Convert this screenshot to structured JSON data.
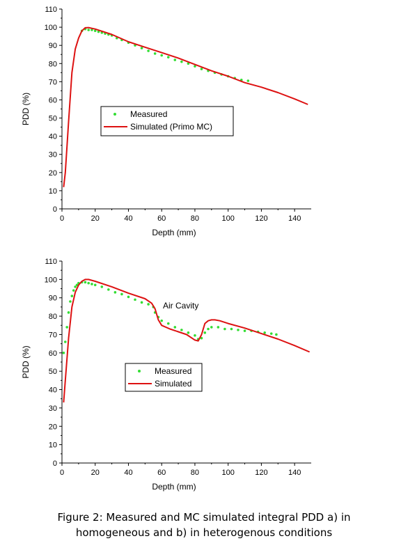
{
  "caption": {
    "line1": "Figure 2:  Measured and MC simulated integral PDD a) in",
    "line2": "homogeneous and b) in heterogenous conditions"
  },
  "colors": {
    "measured": "#33dd33",
    "simulated": "#dd1111"
  },
  "chart_data": [
    {
      "type": "line",
      "xlabel": "Depth (mm)",
      "ylabel": "PDD (%)",
      "xlim": [
        0,
        150
      ],
      "ylim": [
        0,
        110
      ],
      "xticks": [
        0,
        20,
        40,
        60,
        80,
        100,
        120,
        140
      ],
      "yticks": [
        0,
        10,
        20,
        30,
        40,
        50,
        60,
        70,
        80,
        90,
        100,
        110
      ],
      "legend": [
        "Measured",
        "Simulated (Primo MC)"
      ],
      "series": [
        {
          "name": "Measured",
          "kind": "scatter",
          "x": [
            12,
            14,
            16,
            18,
            20,
            22,
            24,
            26,
            28,
            30,
            33,
            36,
            40,
            44,
            48,
            52,
            56,
            60,
            64,
            68,
            72,
            76,
            80,
            84,
            88,
            92,
            96,
            100,
            104,
            108,
            112
          ],
          "y": [
            98,
            99,
            98.5,
            98.5,
            98,
            97.5,
            97,
            96.5,
            96,
            95.5,
            94,
            93,
            91.5,
            90,
            88.5,
            87,
            85.5,
            84.5,
            83.5,
            82,
            81,
            80,
            78.5,
            77,
            76,
            75,
            74,
            73,
            72,
            71,
            70.5
          ]
        },
        {
          "name": "Simulated (Primo MC)",
          "kind": "line",
          "x": [
            1,
            2,
            4,
            6,
            8,
            10,
            12,
            14,
            16,
            18,
            20,
            30,
            40,
            50,
            60,
            70,
            80,
            90,
            100,
            110,
            120,
            130,
            140,
            148
          ],
          "y": [
            12,
            20,
            48,
            75,
            88,
            94,
            98,
            99.7,
            99.8,
            99.4,
            99,
            96,
            92,
            89,
            86,
            83,
            79.5,
            76,
            73,
            69.5,
            67,
            64,
            60.5,
            57.5
          ]
        }
      ]
    },
    {
      "type": "line",
      "xlabel": "Depth (mm)",
      "ylabel": "PDD (%)",
      "xlim": [
        0,
        150
      ],
      "ylim": [
        0,
        110
      ],
      "xticks": [
        0,
        20,
        40,
        60,
        80,
        100,
        120,
        140
      ],
      "yticks": [
        0,
        10,
        20,
        30,
        40,
        50,
        60,
        70,
        80,
        90,
        100,
        110
      ],
      "legend": [
        "Measured",
        "Simulated"
      ],
      "annotation": "Air Cavity",
      "series": [
        {
          "name": "Measured",
          "kind": "scatter",
          "x": [
            1,
            2,
            3,
            4,
            5,
            6,
            7,
            8,
            9,
            10,
            12,
            14,
            16,
            18,
            20,
            24,
            28,
            32,
            36,
            40,
            44,
            48,
            52,
            55,
            56,
            58,
            60,
            64,
            68,
            72,
            76,
            80,
            82,
            84,
            86,
            88,
            90,
            94,
            98,
            102,
            106,
            110,
            114,
            118,
            122,
            126,
            129
          ],
          "y": [
            60,
            66,
            74,
            82,
            88,
            91,
            94,
            96,
            97,
            98,
            98.5,
            98.5,
            98,
            97.5,
            97,
            96,
            94.5,
            93,
            92,
            90.5,
            89,
            87.5,
            86.5,
            85,
            82,
            79.5,
            77.5,
            76,
            74,
            72.5,
            71,
            69.5,
            67.5,
            68,
            71,
            73,
            74,
            74,
            73,
            73,
            72.5,
            72,
            72,
            71.5,
            71,
            70.5,
            70
          ]
        },
        {
          "name": "Simulated",
          "kind": "line",
          "x": [
            1,
            2,
            4,
            6,
            8,
            10,
            12,
            14,
            16,
            20,
            30,
            40,
            50,
            54,
            56,
            58,
            60,
            65,
            70,
            75,
            80,
            82,
            84,
            86,
            88,
            90,
            92,
            95,
            100,
            110,
            120,
            130,
            140,
            149
          ],
          "y": [
            33,
            45,
            68,
            85,
            93,
            97,
            99,
            100,
            100,
            99,
            96,
            92.5,
            89.5,
            87,
            84,
            78,
            75,
            73,
            71.5,
            70,
            67,
            66.5,
            70,
            76,
            77.5,
            78,
            78,
            77.5,
            76,
            73.5,
            70.5,
            67.5,
            64,
            60.5
          ]
        }
      ]
    }
  ]
}
